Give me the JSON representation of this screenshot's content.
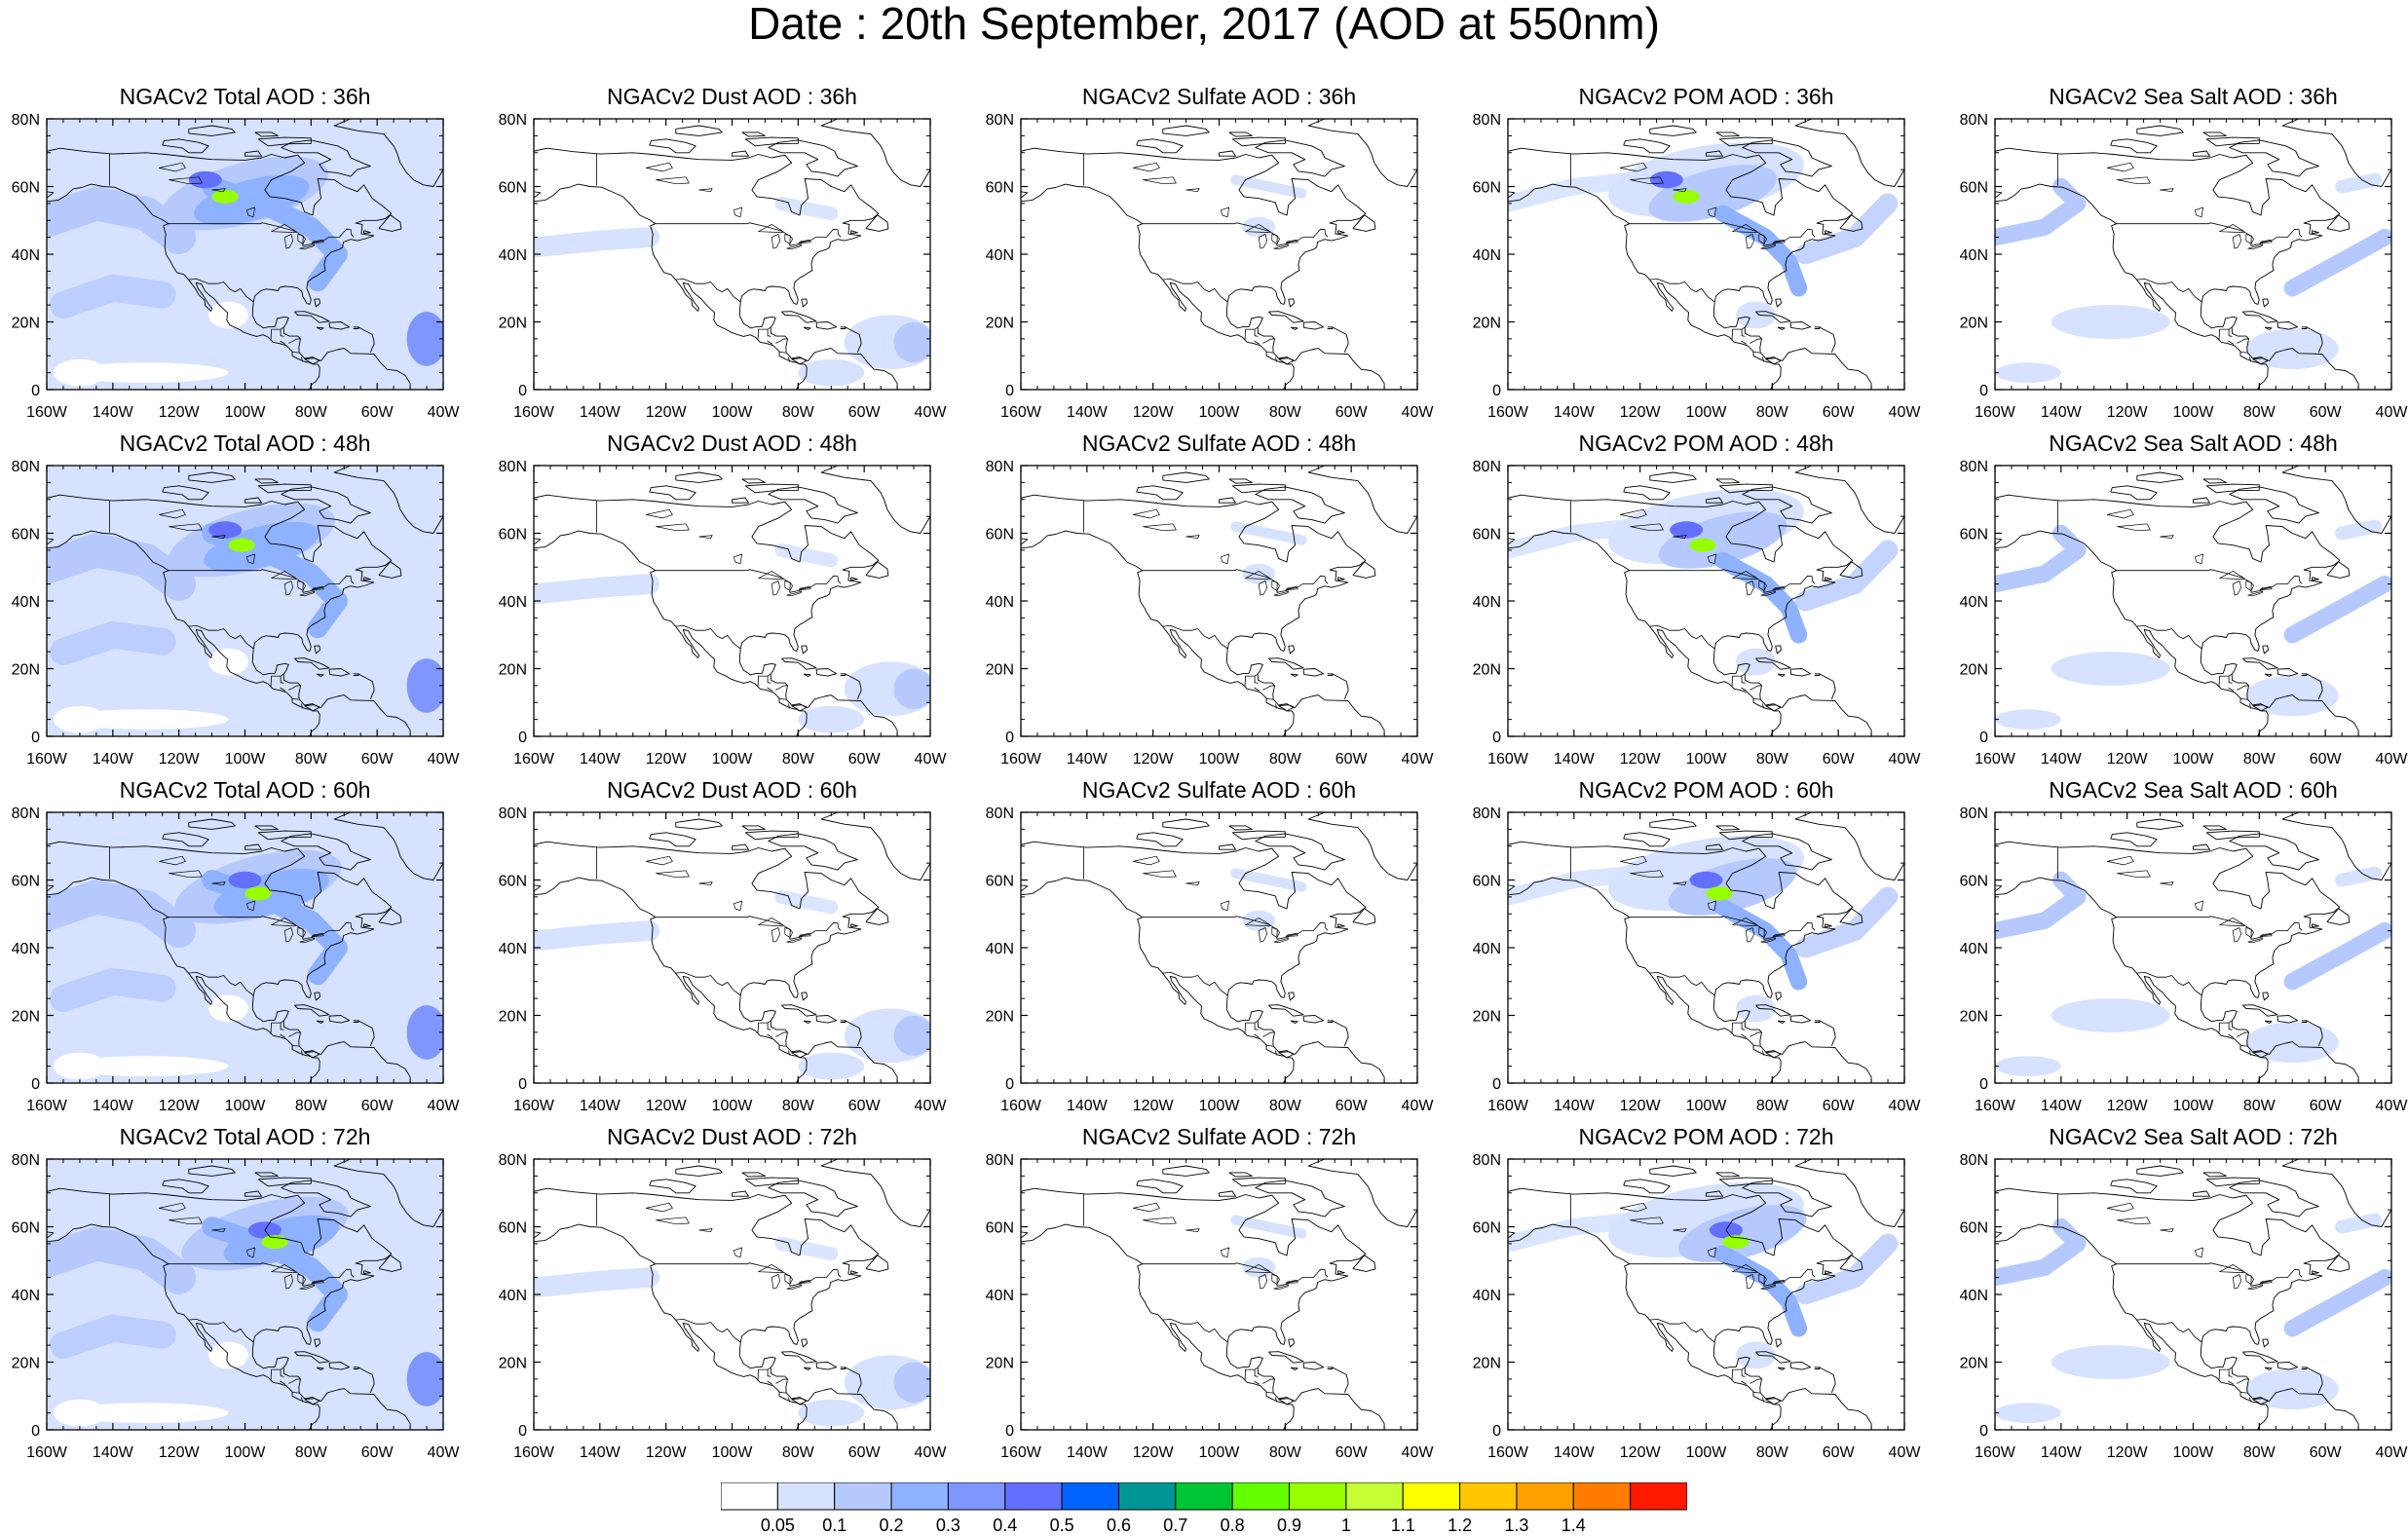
{
  "title": "Date : 20th September, 2017 (AOD at 550nm)",
  "map": {
    "x_tick_labels": [
      "160W",
      "140W",
      "120W",
      "100W",
      "80W",
      "60W",
      "40W"
    ],
    "y_tick_labels": [
      "0",
      "20N",
      "40N",
      "60N",
      "80N"
    ],
    "lon_range": [
      "160W",
      "40W"
    ],
    "lat_range": [
      "0",
      "80N"
    ],
    "coastline_color": "#000000"
  },
  "panels": [
    {
      "title": "NGACv2 Total AOD : 36h",
      "species": "total",
      "forecast_hour": 36
    },
    {
      "title": "NGACv2 Dust AOD : 36h",
      "species": "dust",
      "forecast_hour": 36
    },
    {
      "title": "NGACv2 Sulfate AOD : 36h",
      "species": "sulfate",
      "forecast_hour": 36
    },
    {
      "title": "NGACv2 POM AOD : 36h",
      "species": "pom",
      "forecast_hour": 36
    },
    {
      "title": "NGACv2 Sea Salt AOD : 36h",
      "species": "seasalt",
      "forecast_hour": 36
    },
    {
      "title": "NGACv2 Total AOD : 48h",
      "species": "total",
      "forecast_hour": 48
    },
    {
      "title": "NGACv2 Dust AOD : 48h",
      "species": "dust",
      "forecast_hour": 48
    },
    {
      "title": "NGACv2 Sulfate AOD : 48h",
      "species": "sulfate",
      "forecast_hour": 48
    },
    {
      "title": "NGACv2 POM AOD : 48h",
      "species": "pom",
      "forecast_hour": 48
    },
    {
      "title": "NGACv2 Sea Salt AOD : 48h",
      "species": "seasalt",
      "forecast_hour": 48
    },
    {
      "title": "NGACv2 Total AOD : 60h",
      "species": "total",
      "forecast_hour": 60
    },
    {
      "title": "NGACv2 Dust AOD : 60h",
      "species": "dust",
      "forecast_hour": 60
    },
    {
      "title": "NGACv2 Sulfate AOD : 60h",
      "species": "sulfate",
      "forecast_hour": 60
    },
    {
      "title": "NGACv2 POM AOD : 60h",
      "species": "pom",
      "forecast_hour": 60
    },
    {
      "title": "NGACv2 Sea Salt AOD : 60h",
      "species": "seasalt",
      "forecast_hour": 60
    },
    {
      "title": "NGACv2 Total AOD : 72h",
      "species": "total",
      "forecast_hour": 72
    },
    {
      "title": "NGACv2 Dust AOD : 72h",
      "species": "dust",
      "forecast_hour": 72
    },
    {
      "title": "NGACv2 Sulfate AOD : 72h",
      "species": "sulfate",
      "forecast_hour": 72
    },
    {
      "title": "NGACv2 POM AOD : 72h",
      "species": "pom",
      "forecast_hour": 72
    },
    {
      "title": "NGACv2 Sea Salt  AOD : 72h",
      "species": "seasalt",
      "forecast_hour": 72
    }
  ],
  "colorbar": {
    "labels": [
      "0.05",
      "0.1",
      "0.2",
      "0.3",
      "0.4",
      "0.5",
      "0.6",
      "0.7",
      "0.8",
      "0.9",
      "1",
      "1.1",
      "1.2",
      "1.3",
      "1.4"
    ],
    "colors": [
      "#ffffff",
      "#d6e2ff",
      "#b5c9ff",
      "#8eb2ff",
      "#7f96ff",
      "#6370ff",
      "#0063ff",
      "#009696",
      "#00c633",
      "#63ff00",
      "#96ff00",
      "#c6ff33",
      "#ffff00",
      "#ffc600",
      "#ffa000",
      "#ff7c00",
      "#ff1900"
    ]
  },
  "chart_data": {
    "type": "heatmap",
    "description_fields": [
      "panels",
      "colorbar"
    ],
    "variable": "AOD at 550nm",
    "date": "20th September, 2017",
    "species": [
      "Total",
      "Dust",
      "Sulfate",
      "POM",
      "Sea Salt"
    ],
    "forecast_hours": [
      36,
      48,
      60,
      72
    ],
    "levels": [
      0.05,
      0.1,
      0.2,
      0.3,
      0.4,
      0.5,
      0.6,
      0.7,
      0.8,
      0.9,
      1,
      1.1,
      1.2,
      1.3,
      1.4
    ]
  }
}
